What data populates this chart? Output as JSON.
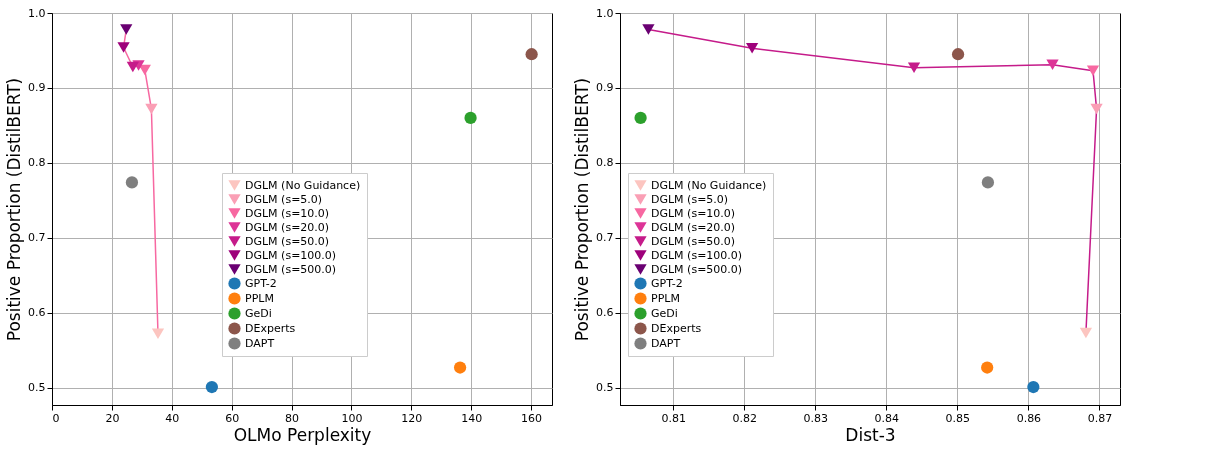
{
  "chart_data": [
    {
      "type": "scatter",
      "xlabel": "OLMo Perplexity",
      "ylabel": "Positive Proportion (DistilBERT)",
      "xlim": [
        0,
        167
      ],
      "xticks": [
        0,
        20,
        40,
        60,
        80,
        100,
        120,
        140,
        160
      ],
      "ylim": [
        0.477,
        1.0
      ],
      "yticks": [
        0.5,
        0.6,
        0.7,
        0.8,
        0.9,
        {
          "value": 1.0,
          "label": "1.0"
        }
      ],
      "grid": true,
      "legend": "bottom",
      "series": [
        {
          "type": "line",
          "marker": "none",
          "color": "#f768a1",
          "x": [
            35.4,
            33.2,
            31.0,
            28.9,
            27.0,
            23.9,
            24.8
          ],
          "values": [
            0.572,
            0.872,
            0.924,
            0.93,
            0.928,
            0.954,
            0.978
          ]
        },
        {
          "name": "DGLM (No Guidance)",
          "marker": "triangle",
          "color": "#fcc5c0",
          "x": [
            35.4
          ],
          "values": [
            0.572
          ]
        },
        {
          "name": "DGLM (s=5.0)",
          "marker": "triangle",
          "color": "#fa9fb5",
          "x": [
            33.2
          ],
          "values": [
            0.872
          ]
        },
        {
          "name": "DGLM (s=10.0)",
          "marker": "triangle",
          "color": "#f768a1",
          "x": [
            31.0
          ],
          "values": [
            0.924
          ]
        },
        {
          "name": "DGLM (s=20.0)",
          "marker": "triangle",
          "color": "#dd3497",
          "x": [
            28.9
          ],
          "values": [
            0.93
          ]
        },
        {
          "name": "DGLM (s=50.0)",
          "marker": "triangle",
          "color": "#c51b8a",
          "x": [
            27.0
          ],
          "values": [
            0.928
          ]
        },
        {
          "name": "DGLM (s=100.0)",
          "marker": "triangle",
          "color": "#9e017b",
          "x": [
            23.9
          ],
          "values": [
            0.954
          ]
        },
        {
          "name": "DGLM (s=500.0)",
          "marker": "triangle",
          "color": "#6a0072",
          "x": [
            24.8
          ],
          "values": [
            0.978
          ]
        },
        {
          "name": "GPT-2",
          "marker": "circle",
          "color": "#1f77b4",
          "x": [
            53.4
          ],
          "values": [
            0.501
          ]
        },
        {
          "name": "PPLM",
          "marker": "circle",
          "color": "#ff7f0e",
          "x": [
            136.3
          ],
          "values": [
            0.527
          ]
        },
        {
          "name": "GeDi",
          "marker": "circle",
          "color": "#2ca02c",
          "x": [
            139.8
          ],
          "values": [
            0.86
          ]
        },
        {
          "name": "DExperts",
          "marker": "circle",
          "color": "#8c564b",
          "x": [
            160.2
          ],
          "values": [
            0.945
          ]
        },
        {
          "name": "DAPT",
          "marker": "circle",
          "color": "#7f7f7f",
          "x": [
            26.7
          ],
          "values": [
            0.774
          ]
        }
      ]
    },
    {
      "type": "scatter",
      "xlabel": "Dist-3",
      "ylabel": "Positive Proportion (DistilBERT)",
      "xlim": [
        0.8025,
        0.8729
      ],
      "xticks": [
        0.81,
        0.82,
        0.83,
        0.84,
        0.85,
        0.86,
        0.87
      ],
      "ylim": [
        0.477,
        1.0
      ],
      "yticks": [
        0.5,
        0.6,
        0.7,
        0.8,
        0.9,
        {
          "value": 1.0,
          "label": "1.0"
        }
      ],
      "grid": true,
      "legend": "bottom left",
      "series": [
        {
          "type": "line",
          "marker": "none",
          "color": "#c51b8a",
          "x": [
            0.8681,
            0.8696,
            0.8691,
            0.8634,
            0.8439,
            0.8211,
            0.8065
          ],
          "values": [
            0.573,
            0.872,
            0.923,
            0.931,
            0.927,
            0.953,
            0.978
          ]
        },
        {
          "name": "DGLM (No Guidance)",
          "marker": "triangle",
          "color": "#fcc5c0",
          "x": [
            0.8681
          ],
          "values": [
            0.573
          ]
        },
        {
          "name": "DGLM (s=5.0)",
          "marker": "triangle",
          "color": "#fa9fb5",
          "x": [
            0.8696
          ],
          "values": [
            0.872
          ]
        },
        {
          "name": "DGLM (s=10.0)",
          "marker": "triangle",
          "color": "#f768a1",
          "x": [
            0.8691
          ],
          "values": [
            0.923
          ]
        },
        {
          "name": "DGLM (s=20.0)",
          "marker": "triangle",
          "color": "#dd3497",
          "x": [
            0.8634
          ],
          "values": [
            0.931
          ]
        },
        {
          "name": "DGLM (s=50.0)",
          "marker": "triangle",
          "color": "#c51b8a",
          "x": [
            0.8439
          ],
          "values": [
            0.927
          ]
        },
        {
          "name": "DGLM (s=100.0)",
          "marker": "triangle",
          "color": "#9e017b",
          "x": [
            0.8211
          ],
          "values": [
            0.953
          ]
        },
        {
          "name": "DGLM (s=500.0)",
          "marker": "triangle",
          "color": "#6a0072",
          "x": [
            0.8065
          ],
          "values": [
            0.978
          ]
        },
        {
          "name": "GPT-2",
          "marker": "circle",
          "color": "#1f77b4",
          "x": [
            0.8607
          ],
          "values": [
            0.501
          ]
        },
        {
          "name": "PPLM",
          "marker": "circle",
          "color": "#ff7f0e",
          "x": [
            0.8542
          ],
          "values": [
            0.527
          ]
        },
        {
          "name": "GeDi",
          "marker": "circle",
          "color": "#2ca02c",
          "x": [
            0.8054
          ],
          "values": [
            0.86
          ]
        },
        {
          "name": "DExperts",
          "marker": "circle",
          "color": "#8c564b",
          "x": [
            0.8501
          ],
          "values": [
            0.945
          ]
        },
        {
          "name": "DAPT",
          "marker": "circle",
          "color": "#7f7f7f",
          "x": [
            0.8543
          ],
          "values": [
            0.774
          ]
        }
      ]
    }
  ]
}
